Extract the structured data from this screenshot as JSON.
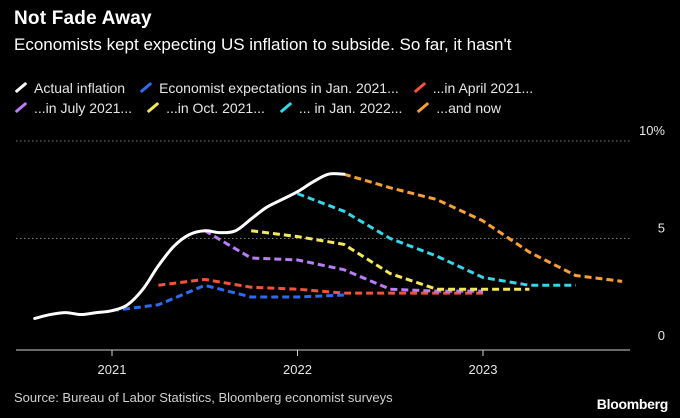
{
  "header": {
    "title": "Not Fade Away",
    "subtitle": "Economists kept expecting US inflation to subside. So far, it hasn't"
  },
  "footer": {
    "source": "Source: Bureau of Labor Statistics, Bloomberg economist surveys",
    "brand": "Bloomberg"
  },
  "chart_data": {
    "type": "line",
    "title": "Not Fade Away",
    "subtitle": "Economists kept expecting US inflation to subside. So far, it hasn't",
    "x_ticks": [
      "2021",
      "2022",
      "2023"
    ],
    "y_ticks": [
      {
        "value": 0,
        "label": "0"
      },
      {
        "value": 5,
        "label": "5"
      },
      {
        "value": 10,
        "label": "10%"
      }
    ],
    "ylim": [
      0,
      10
    ],
    "xlim": [
      "2020-07",
      "2023-12"
    ],
    "grid": "horizontal dotted at 5 and 10",
    "legend_position": "top",
    "series": [
      {
        "name": "Actual inflation",
        "color": "#ffffff",
        "dashed": false,
        "points": [
          [
            "2020-08",
            0.9
          ],
          [
            "2020-09",
            1.1
          ],
          [
            "2020-10",
            1.2
          ],
          [
            "2020-11",
            1.1
          ],
          [
            "2020-12",
            1.2
          ],
          [
            "2021-01",
            1.3
          ],
          [
            "2021-02",
            1.6
          ],
          [
            "2021-03",
            2.4
          ],
          [
            "2021-04",
            3.6
          ],
          [
            "2021-05",
            4.6
          ],
          [
            "2021-06",
            5.2
          ],
          [
            "2021-07",
            5.4
          ],
          [
            "2021-08",
            5.3
          ],
          [
            "2021-09",
            5.4
          ],
          [
            "2021-10",
            6.0
          ],
          [
            "2021-11",
            6.6
          ],
          [
            "2021-12",
            7.0
          ],
          [
            "2022-01",
            7.4
          ],
          [
            "2022-02",
            7.9
          ],
          [
            "2022-03",
            8.3
          ],
          [
            "2022-04",
            8.3
          ]
        ]
      },
      {
        "name": "Economist expectations in Jan. 2021...",
        "color": "#2d6cf0",
        "dashed": true,
        "points": [
          [
            "2021-01",
            1.3
          ],
          [
            "2021-04",
            1.6
          ],
          [
            "2021-07",
            2.6
          ],
          [
            "2021-10",
            2.0
          ],
          [
            "2022-01",
            2.0
          ],
          [
            "2022-04",
            2.1
          ]
        ]
      },
      {
        "name": "...in April 2021...",
        "color": "#f4533a",
        "dashed": true,
        "points": [
          [
            "2021-04",
            2.6
          ],
          [
            "2021-07",
            2.9
          ],
          [
            "2021-10",
            2.5
          ],
          [
            "2022-01",
            2.4
          ],
          [
            "2022-04",
            2.2
          ],
          [
            "2022-07",
            2.2
          ],
          [
            "2022-10",
            2.2
          ],
          [
            "2023-01",
            2.2
          ]
        ]
      },
      {
        "name": "...in July 2021...",
        "color": "#b77ef5",
        "dashed": true,
        "points": [
          [
            "2021-07",
            5.4
          ],
          [
            "2021-10",
            4.0
          ],
          [
            "2022-01",
            3.9
          ],
          [
            "2022-04",
            3.4
          ],
          [
            "2022-07",
            2.4
          ],
          [
            "2022-10",
            2.3
          ],
          [
            "2023-01",
            2.3
          ]
        ]
      },
      {
        "name": "...in Oct. 2021...",
        "color": "#f3e85b",
        "dashed": true,
        "points": [
          [
            "2021-10",
            5.4
          ],
          [
            "2022-01",
            5.1
          ],
          [
            "2022-04",
            4.7
          ],
          [
            "2022-07",
            3.2
          ],
          [
            "2022-10",
            2.4
          ],
          [
            "2023-01",
            2.4
          ],
          [
            "2023-04",
            2.4
          ]
        ]
      },
      {
        "name": "... in Jan. 2022...",
        "color": "#35d6e8",
        "dashed": true,
        "points": [
          [
            "2022-01",
            7.3
          ],
          [
            "2022-04",
            6.4
          ],
          [
            "2022-07",
            5.0
          ],
          [
            "2022-10",
            4.1
          ],
          [
            "2023-01",
            3.0
          ],
          [
            "2023-04",
            2.6
          ],
          [
            "2023-07",
            2.6
          ]
        ]
      },
      {
        "name": "...and now",
        "color": "#f7a038",
        "dashed": true,
        "points": [
          [
            "2022-04",
            8.3
          ],
          [
            "2022-07",
            7.6
          ],
          [
            "2022-10",
            7.0
          ],
          [
            "2023-01",
            5.9
          ],
          [
            "2023-04",
            4.3
          ],
          [
            "2023-07",
            3.1
          ],
          [
            "2023-10",
            2.8
          ]
        ]
      }
    ]
  }
}
